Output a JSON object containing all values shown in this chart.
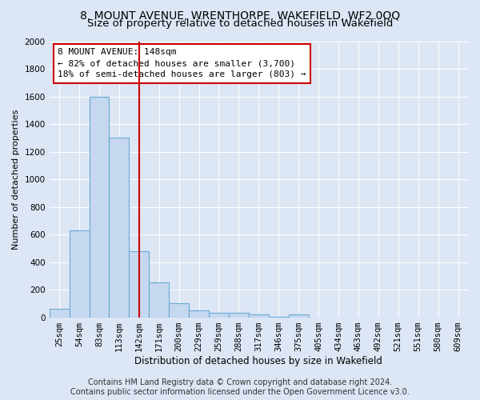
{
  "title": "8, MOUNT AVENUE, WRENTHORPE, WAKEFIELD, WF2 0QQ",
  "subtitle": "Size of property relative to detached houses in Wakefield",
  "xlabel": "Distribution of detached houses by size in Wakefield",
  "ylabel": "Number of detached properties",
  "bar_labels": [
    "25sqm",
    "54sqm",
    "83sqm",
    "113sqm",
    "142sqm",
    "171sqm",
    "200sqm",
    "229sqm",
    "259sqm",
    "288sqm",
    "317sqm",
    "346sqm",
    "375sqm",
    "405sqm",
    "434sqm",
    "463sqm",
    "492sqm",
    "521sqm",
    "551sqm",
    "580sqm",
    "609sqm"
  ],
  "bar_values": [
    60,
    630,
    1600,
    1300,
    480,
    250,
    100,
    50,
    35,
    30,
    20,
    5,
    20,
    0,
    0,
    0,
    0,
    0,
    0,
    0,
    0
  ],
  "bar_color": "#c5d8ef",
  "bar_edge_color": "#6aaad4",
  "vline_x": 4,
  "vline_color": "#cc0000",
  "annotation_line1": "8 MOUNT AVENUE: 148sqm",
  "annotation_line2": "← 82% of detached houses are smaller (3,700)",
  "annotation_line3": "18% of semi-detached houses are larger (803) →",
  "annotation_box_color": "#ffffff",
  "annotation_box_edge": "#cc0000",
  "ylim": [
    0,
    2000
  ],
  "yticks": [
    0,
    200,
    400,
    600,
    800,
    1000,
    1200,
    1400,
    1600,
    1800,
    2000
  ],
  "footer": "Contains HM Land Registry data © Crown copyright and database right 2024.\nContains public sector information licensed under the Open Government Licence v3.0.",
  "background_color": "#dce6f5",
  "plot_background": "#dce6f5",
  "grid_color": "#ffffff",
  "title_fontsize": 10,
  "subtitle_fontsize": 9.5,
  "xlabel_fontsize": 8.5,
  "ylabel_fontsize": 8,
  "tick_fontsize": 7.5,
  "annotation_fontsize": 8,
  "footer_fontsize": 7
}
